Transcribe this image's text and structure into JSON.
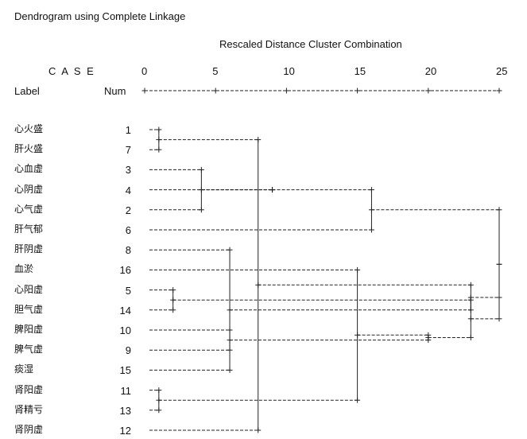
{
  "chart_data": {
    "type": "dendrogram",
    "title": "Dendrogram using Complete Linkage",
    "xlabel": "Rescaled Distance Cluster Combination",
    "case_header": "C A S E",
    "label_header": "Label",
    "num_header": "Num",
    "xlim": [
      0,
      25
    ],
    "x_ticks": [
      0,
      5,
      10,
      15,
      20,
      25
    ],
    "leaves": [
      {
        "label": "心火盛",
        "num": "1"
      },
      {
        "label": "肝火盛",
        "num": "7"
      },
      {
        "label": "心血虚",
        "num": "3"
      },
      {
        "label": "心阴虚",
        "num": "4"
      },
      {
        "label": "心气虚",
        "num": "2"
      },
      {
        "label": "肝气郁",
        "num": "6"
      },
      {
        "label": "肝阴虚",
        "num": "8"
      },
      {
        "label": "血淤",
        "num": "16"
      },
      {
        "label": "心阳虚",
        "num": "5"
      },
      {
        "label": "胆气虚",
        "num": "14"
      },
      {
        "label": "脾阳虚",
        "num": "10"
      },
      {
        "label": "脾气虚",
        "num": "9"
      },
      {
        "label": "痰湿",
        "num": "15"
      },
      {
        "label": "肾阳虚",
        "num": "11"
      },
      {
        "label": "肾精亏",
        "num": "13"
      },
      {
        "label": "肾阴虚",
        "num": "12"
      }
    ],
    "merges": [
      {
        "left": 0,
        "right": 1,
        "distance": 1.0
      },
      {
        "left": 13,
        "right": 14,
        "distance": 1.0
      },
      {
        "left": 8,
        "right": 9,
        "distance": 2.0
      },
      {
        "left": 2,
        "right": 4,
        "distance": 4.0
      },
      {
        "left": 10,
        "right": 11,
        "distance": 6.0
      },
      {
        "left": 6,
        "right": 12,
        "distance": 6.0
      },
      {
        "left": 16,
        "right": 15,
        "distance": 8.0
      },
      {
        "left": 3,
        "right": 19,
        "distance": 9.0
      },
      {
        "left": 17,
        "right": 7,
        "distance": 15.0
      },
      {
        "left": 23,
        "right": 5,
        "distance": 16.0
      },
      {
        "left": 24,
        "right": 20,
        "distance": 20.0
      },
      {
        "left": 18,
        "right": 26,
        "distance": 23.0
      },
      {
        "left": 21,
        "right": 22,
        "distance": 23.0
      },
      {
        "left": 25,
        "right": 27,
        "distance": 25.0
      },
      {
        "left": 28,
        "right": 29,
        "distance": 25.0
      }
    ]
  }
}
